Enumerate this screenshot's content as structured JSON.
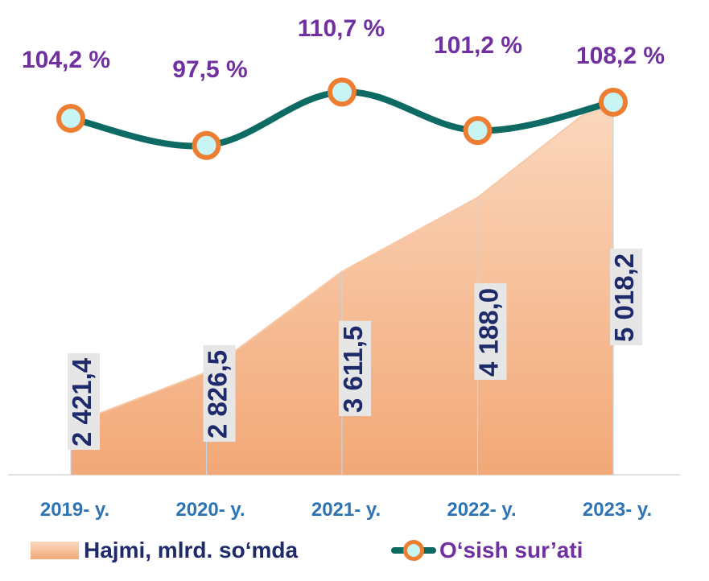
{
  "chart_data": {
    "type": "area",
    "categories": [
      "2019- y.",
      "2020- y.",
      "2021- y.",
      "2022- y.",
      "2023- y."
    ],
    "series": [
      {
        "name": "Hajmi, mlrd. so‘mda",
        "type": "area",
        "values": [
          2421.4,
          2826.5,
          3611.5,
          4188.0,
          5018.2
        ],
        "labels": [
          "2 421,4",
          "2 826,5",
          "3 611,5",
          "4 188,0",
          "5 018,2"
        ]
      },
      {
        "name": "O‘sish sur’ati",
        "type": "line",
        "values": [
          104.2,
          97.5,
          110.7,
          101.2,
          108.2
        ],
        "labels": [
          "104,2 %",
          "97,5 %",
          "110,7 %",
          "101,2 %",
          "108,2 %"
        ]
      }
    ],
    "legend_position": "bottom",
    "grid": false,
    "colors": {
      "area_top": "#fbd9c0",
      "area_bottom": "#f2a877",
      "line": "#0e6b63",
      "marker_fill": "#c9f4f4",
      "marker_edge": "#ed7d31",
      "rate_text": "#7030a0",
      "volume_text": "#1f2a6b",
      "category_text": "#2e74b5"
    }
  }
}
